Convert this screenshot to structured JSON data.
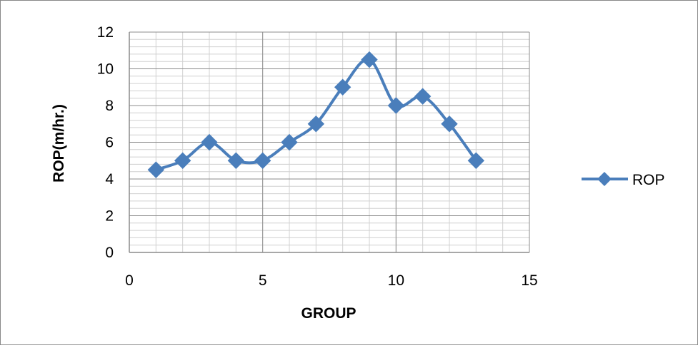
{
  "chart_data": {
    "type": "scatter",
    "title": "",
    "xlabel": "GROUP",
    "ylabel": "ROP(m/hr.)",
    "xlim": [
      0,
      15
    ],
    "ylim": [
      0,
      12
    ],
    "x_ticks": [
      0,
      5,
      10,
      15
    ],
    "y_ticks": [
      0,
      2,
      4,
      6,
      8,
      10,
      12
    ],
    "x_tick_labels": [
      "0",
      "5",
      "10",
      "15"
    ],
    "y_tick_labels": [
      "0",
      "2",
      "4",
      "6",
      "8",
      "10",
      "12"
    ],
    "grid": true,
    "legend_position": "right",
    "series": [
      {
        "name": "ROP",
        "color": "#4a7ebb",
        "marker": "diamond",
        "line": "smooth",
        "x": [
          1,
          2,
          3,
          4,
          5,
          6,
          7,
          8,
          9,
          10,
          11,
          12,
          13
        ],
        "y": [
          4.5,
          5,
          6,
          5,
          5,
          6,
          7,
          9,
          10.5,
          8,
          8.5,
          7,
          5
        ]
      }
    ]
  }
}
